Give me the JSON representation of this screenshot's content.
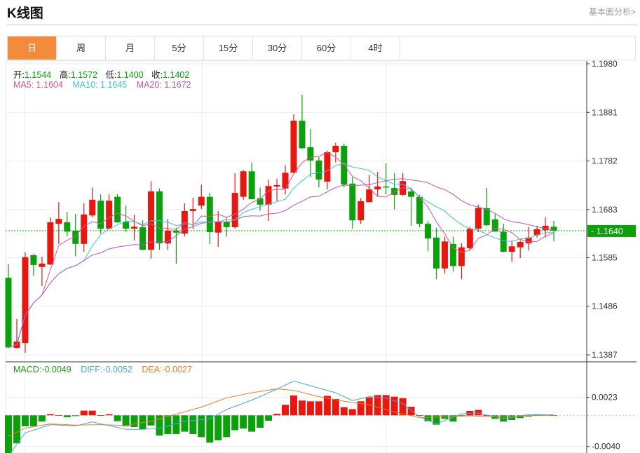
{
  "header": {
    "title": "K线图",
    "link": "基本面分析>"
  },
  "tabs": [
    {
      "label": "日",
      "active": true
    },
    {
      "label": "周"
    },
    {
      "label": "月"
    },
    {
      "label": "5分"
    },
    {
      "label": "15分"
    },
    {
      "label": "30分"
    },
    {
      "label": "60分"
    },
    {
      "label": "4时"
    }
  ],
  "info": {
    "open_label": "开:",
    "open": "1.1544",
    "high_label": "高:",
    "high": "1.1572",
    "low_label": "低:",
    "low": "1.1400",
    "close_label": "收:",
    "close": "1.1402",
    "ma5_label": "MA5:",
    "ma5": "1.1604",
    "ma10_label": "MA10:",
    "ma10": "1.1645",
    "ma20_label": "MA20:",
    "ma20": "1.1672"
  },
  "macd_info": {
    "macd_label": "MACD:",
    "macd": "-0.0049",
    "diff_label": "DIFF:",
    "diff": "-0.0052",
    "dea_label": "DEA:",
    "dea": "-0.0027"
  },
  "colors": {
    "up": "#e8170f",
    "down": "#0ca10c",
    "ma5": "#e0558a",
    "ma10": "#3cc4d4",
    "ma20": "#b25ac0",
    "diff": "#4aa3e0",
    "dea": "#f07c22",
    "active_tab": "#f28b3c"
  },
  "chart_data": [
    {
      "type": "candlestick",
      "y_ticks": [
        "1.1980",
        "1.1881",
        "1.1782",
        "1.1683",
        "1.1585",
        "1.1486",
        "1.1387"
      ],
      "current_price": "1.1640",
      "ohlc": [
        [
          1.1544,
          1.1572,
          1.14,
          1.1402
        ],
        [
          1.1401,
          1.146,
          1.14,
          1.1414
        ],
        [
          1.1411,
          1.1596,
          1.1391,
          1.1586
        ],
        [
          1.159,
          1.1593,
          1.1548,
          1.157
        ],
        [
          1.1566,
          1.1587,
          1.1527,
          1.1573
        ],
        [
          1.1571,
          1.1667,
          1.157,
          1.1657
        ],
        [
          1.1654,
          1.1698,
          1.1613,
          1.1664
        ],
        [
          1.1657,
          1.1678,
          1.1628,
          1.1638
        ],
        [
          1.164,
          1.1674,
          1.1588,
          1.1613
        ],
        [
          1.1613,
          1.1696,
          1.1597,
          1.1673
        ],
        [
          1.1671,
          1.1728,
          1.1667,
          1.1703
        ],
        [
          1.1701,
          1.1714,
          1.1634,
          1.1644
        ],
        [
          1.1644,
          1.1714,
          1.1643,
          1.1701
        ],
        [
          1.1709,
          1.1714,
          1.1656,
          1.1657
        ],
        [
          1.1658,
          1.1691,
          1.1638,
          1.1644
        ],
        [
          1.1644,
          1.1673,
          1.162,
          1.1648
        ],
        [
          1.1647,
          1.1661,
          1.16,
          1.1601
        ],
        [
          1.1601,
          1.1741,
          1.1583,
          1.172
        ],
        [
          1.172,
          1.1726,
          1.1601,
          1.1614
        ],
        [
          1.1614,
          1.1664,
          1.1601,
          1.164
        ],
        [
          1.164,
          1.1646,
          1.1573,
          1.1636
        ],
        [
          1.1634,
          1.1696,
          1.1628,
          1.168
        ],
        [
          1.168,
          1.1707,
          1.1643,
          1.1684
        ],
        [
          1.1691,
          1.1734,
          1.1684,
          1.1709
        ],
        [
          1.1709,
          1.1717,
          1.1613,
          1.1637
        ],
        [
          1.1636,
          1.168,
          1.1607,
          1.1658
        ],
        [
          1.1658,
          1.1667,
          1.1628,
          1.1647
        ],
        [
          1.1647,
          1.1757,
          1.1644,
          1.1717
        ],
        [
          1.1709,
          1.1764,
          1.1703,
          1.1761
        ],
        [
          1.1761,
          1.1779,
          1.1704,
          1.1704
        ],
        [
          1.1706,
          1.1728,
          1.1681,
          1.1693
        ],
        [
          1.1693,
          1.1744,
          1.166,
          1.1731
        ],
        [
          1.173,
          1.1746,
          1.17,
          1.1733
        ],
        [
          1.1726,
          1.1773,
          1.1714,
          1.1758
        ],
        [
          1.1758,
          1.1877,
          1.1757,
          1.1864
        ],
        [
          1.1864,
          1.1917,
          1.1807,
          1.1808
        ],
        [
          1.181,
          1.1847,
          1.1749,
          1.1783
        ],
        [
          1.1783,
          1.179,
          1.1728,
          1.1744
        ],
        [
          1.174,
          1.1803,
          1.1724,
          1.18
        ],
        [
          1.18,
          1.1819,
          1.1779,
          1.1813
        ],
        [
          1.1813,
          1.1817,
          1.1728,
          1.1734
        ],
        [
          1.1736,
          1.1749,
          1.1644,
          1.1661
        ],
        [
          1.1661,
          1.1706,
          1.1654,
          1.17
        ],
        [
          1.1698,
          1.1754,
          1.1698,
          1.1724
        ],
        [
          1.1724,
          1.176,
          1.171,
          1.173
        ],
        [
          1.173,
          1.1777,
          1.1714,
          1.1728
        ],
        [
          1.1727,
          1.1757,
          1.1683,
          1.1713
        ],
        [
          1.1713,
          1.1757,
          1.1711,
          1.1741
        ],
        [
          1.172,
          1.1728,
          1.165,
          1.1709
        ],
        [
          1.1709,
          1.1713,
          1.1647,
          1.1654
        ],
        [
          1.1654,
          1.166,
          1.1598,
          1.1624
        ],
        [
          1.1626,
          1.1646,
          1.1541,
          1.1563
        ],
        [
          1.1563,
          1.1628,
          1.1553,
          1.1618
        ],
        [
          1.1613,
          1.1628,
          1.1557,
          1.1568
        ],
        [
          1.1568,
          1.1614,
          1.1541,
          1.1606
        ],
        [
          1.1604,
          1.1648,
          1.16,
          1.1644
        ],
        [
          1.1644,
          1.1693,
          1.1637,
          1.1686
        ],
        [
          1.1686,
          1.1727,
          1.165,
          1.1651
        ],
        [
          1.1663,
          1.1674,
          1.1638,
          1.1638
        ],
        [
          1.1638,
          1.1654,
          1.1596,
          1.1597
        ],
        [
          1.1597,
          1.162,
          1.1577,
          1.1608
        ],
        [
          1.1606,
          1.162,
          1.1584,
          1.1617
        ],
        [
          1.1614,
          1.1648,
          1.16,
          1.1626
        ],
        [
          1.1631,
          1.165,
          1.1626,
          1.1643
        ],
        [
          1.1641,
          1.1667,
          1.1626,
          1.165
        ],
        [
          1.1648,
          1.166,
          1.1618,
          1.164
        ]
      ]
    },
    {
      "type": "bar+line",
      "y_ticks": [
        "0.0023",
        "-0.0040"
      ],
      "macd": [
        -0.0049,
        -0.0036,
        -0.0014,
        -0.0014,
        -0.0008,
        0.00015,
        3e-05,
        -0.00024,
        -0.0001,
        0.0006,
        0.0006,
        2e-05,
        0.00015,
        -0.00075,
        -0.0014,
        -0.0015,
        -0.0018,
        -0.0013,
        -0.0026,
        -0.0024,
        -0.0024,
        -0.0021,
        -0.0024,
        -0.0028,
        -0.0035,
        -0.0032,
        -0.0028,
        -0.0019,
        -0.0017,
        -0.0021,
        -0.0016,
        -0.0007,
        0.0002,
        0.00135,
        0.00255,
        0.0019,
        0.0018,
        0.0018,
        0.0025,
        0.0021,
        0.00105,
        0.0008,
        0.0018,
        0.0023,
        0.0026,
        0.0026,
        0.0024,
        0.0022,
        0.0011,
        2e-05,
        -0.00075,
        -0.0012,
        -0.00045,
        -0.0008,
        -5e-05,
        0.00057,
        0.0007,
        2e-05,
        -0.00045,
        -0.0008,
        -0.0006,
        -0.00036,
        -0.00015,
        0.0001,
        0.0001,
        -3e-05
      ],
      "diff": [
        [
          1,
          -0.0052
        ],
        [
          3,
          -0.00225
        ],
        [
          6,
          -0.0012
        ],
        [
          9,
          -0.00135
        ],
        [
          11,
          -0.00084
        ],
        [
          15,
          -0.0018
        ],
        [
          17,
          -0.0018
        ],
        [
          19,
          -0.00165
        ],
        [
          22,
          -0.00075
        ],
        [
          25,
          -0.00045
        ],
        [
          27,
          0.00075
        ],
        [
          30,
          0.00195
        ],
        [
          33,
          0.00336
        ],
        [
          35,
          0.0044
        ],
        [
          38,
          0.0035
        ],
        [
          40,
          0.0029
        ],
        [
          42,
          0.0019
        ],
        [
          44,
          0.0024
        ],
        [
          46,
          0.00225
        ],
        [
          48,
          0.0015
        ],
        [
          50,
          -0.0002
        ],
        [
          52,
          -0.0011
        ],
        [
          55,
          0.0002
        ],
        [
          57,
          0.0003
        ],
        [
          60,
          -0.00045
        ],
        [
          63,
          0.0001
        ],
        [
          66,
          6e-05
        ]
      ],
      "dea": [
        [
          1,
          -0.0027
        ],
        [
          3,
          -0.00165
        ],
        [
          6,
          -0.0011
        ],
        [
          9,
          -0.00126
        ],
        [
          12,
          -0.0012
        ],
        [
          15,
          -0.0013
        ],
        [
          18,
          -0.00075
        ],
        [
          21,
          0.00015
        ],
        [
          24,
          0.00105
        ],
        [
          27,
          0.00225
        ],
        [
          30,
          0.0029
        ],
        [
          33,
          0.0034
        ],
        [
          35,
          0.0032
        ],
        [
          38,
          0.0024
        ],
        [
          41,
          0.0018
        ],
        [
          44,
          0.00135
        ],
        [
          47,
          0.00045
        ],
        [
          50,
          -0.0003
        ],
        [
          53,
          -0.0002
        ],
        [
          56,
          -6e-05
        ],
        [
          60,
          -0.00024
        ],
        [
          63,
          -3e-05
        ],
        [
          66,
          0
        ]
      ]
    }
  ]
}
